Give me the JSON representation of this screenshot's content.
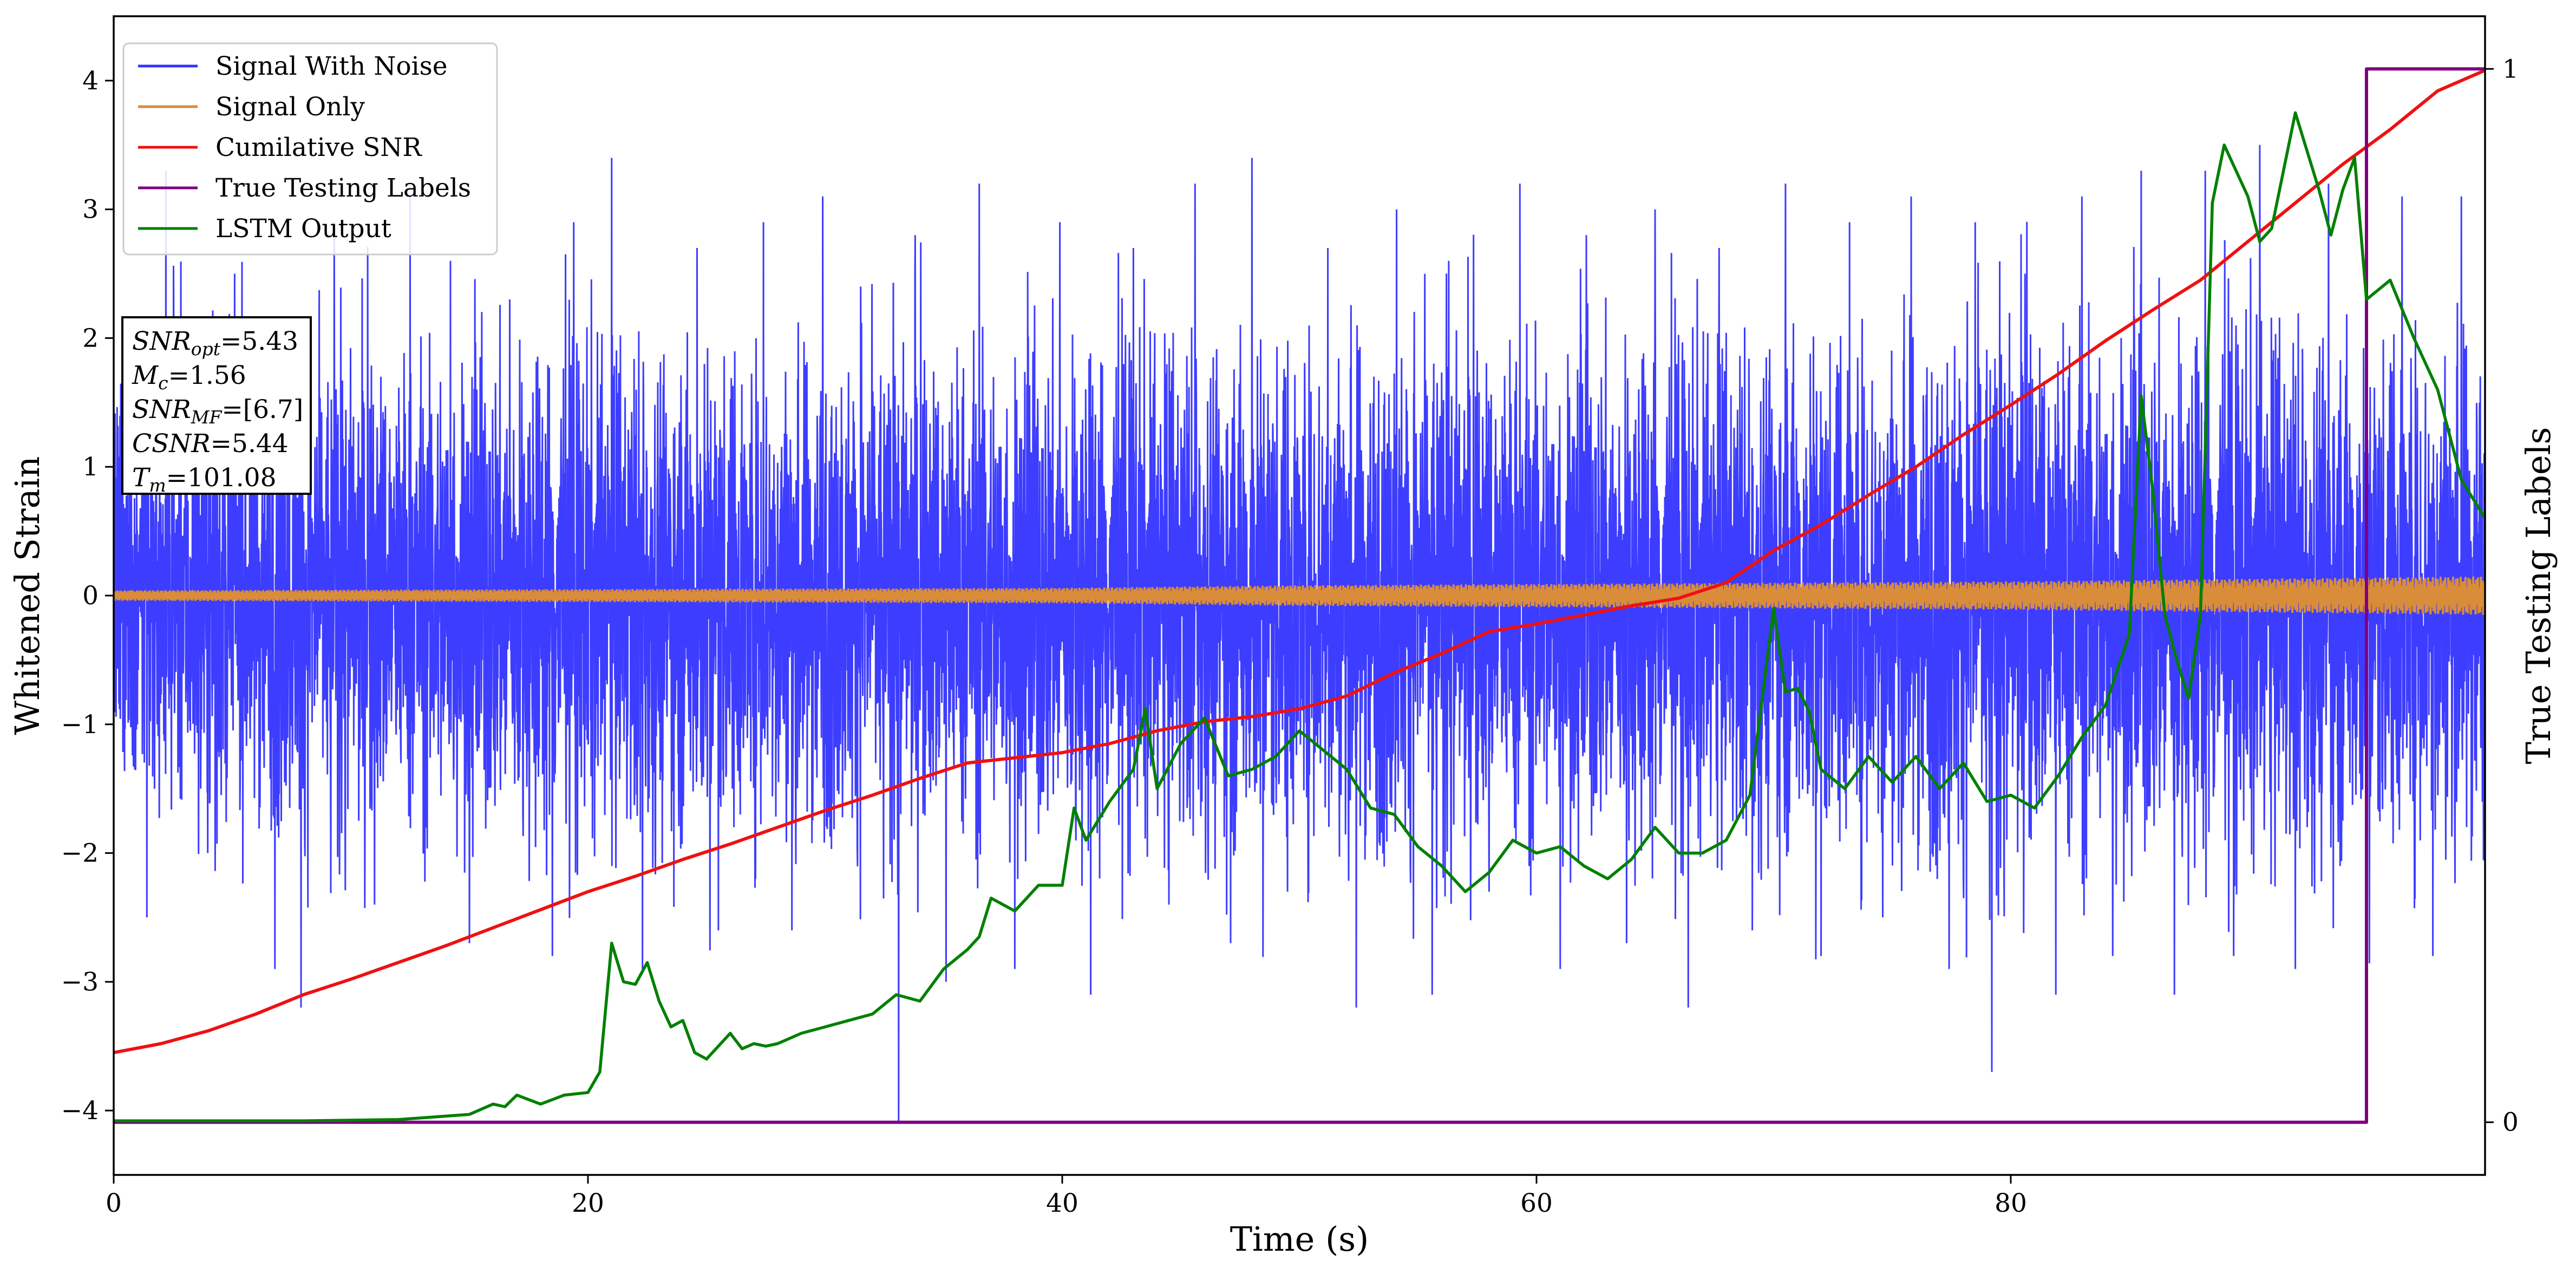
{
  "chart_data": {
    "type": "line",
    "title": "",
    "xlabel": "Time (s)",
    "ylabel": "Whitened Strain",
    "y2label": "True Testing Labels",
    "xlim": [
      0,
      100
    ],
    "ylim": [
      -4.5,
      4.5
    ],
    "y2lim": [
      -0.05,
      1.05
    ],
    "xticks": [
      0,
      20,
      40,
      60,
      80
    ],
    "yticks": [
      -4,
      -3,
      -2,
      -1,
      0,
      1,
      2,
      3,
      4
    ],
    "y2ticks": [
      0,
      1
    ],
    "grid": false,
    "legend_position": "top-left",
    "colors": {
      "signal_with_noise": "#3333ff",
      "signal_only": "#d98c3a",
      "cumulative_snr": "#ee1111",
      "true_labels": "#800080",
      "lstm_output": "#008000"
    },
    "series": [
      {
        "name": "Signal With Noise",
        "axis": "left",
        "description_of_shape": "dense noise",
        "envelope_upper": [
          [
            0,
            1.2
          ],
          [
            10,
            1.4
          ],
          [
            20,
            1.5
          ],
          [
            30,
            1.4
          ],
          [
            40,
            1.5
          ],
          [
            50,
            1.5
          ],
          [
            60,
            1.5
          ],
          [
            70,
            1.5
          ],
          [
            80,
            1.6
          ],
          [
            90,
            1.6
          ],
          [
            100,
            1.5
          ]
        ],
        "envelope_lower": [
          [
            0,
            -1.2
          ],
          [
            10,
            -1.4
          ],
          [
            20,
            -1.5
          ],
          [
            30,
            -1.4
          ],
          [
            40,
            -1.5
          ],
          [
            50,
            -1.5
          ],
          [
            60,
            -1.5
          ],
          [
            70,
            -1.5
          ],
          [
            80,
            -1.6
          ],
          [
            90,
            -1.6
          ],
          [
            100,
            -1.5
          ]
        ],
        "spikes": [
          [
            1.4,
            -2.5
          ],
          [
            2.2,
            3.3
          ],
          [
            3.5,
            2.1
          ],
          [
            5.1,
            2.5
          ],
          [
            6.8,
            -2.9
          ],
          [
            7.9,
            -3.2
          ],
          [
            9.3,
            2.9
          ],
          [
            11.0,
            -2.4
          ],
          [
            12.5,
            3.1
          ],
          [
            14.2,
            2.6
          ],
          [
            15.0,
            -2.7
          ],
          [
            16.7,
            2.3
          ],
          [
            18.5,
            -2.8
          ],
          [
            19.4,
            2.9
          ],
          [
            21.0,
            3.4
          ],
          [
            22.3,
            -2.9
          ],
          [
            24.6,
            2.7
          ],
          [
            25.5,
            -2.6
          ],
          [
            27.4,
            2.9
          ],
          [
            28.6,
            -2.6
          ],
          [
            29.9,
            3.1
          ],
          [
            31.5,
            2.4
          ],
          [
            33.1,
            -4.1
          ],
          [
            33.8,
            2.8
          ],
          [
            35.1,
            -3.0
          ],
          [
            36.5,
            3.2
          ],
          [
            38.0,
            -2.9
          ],
          [
            39.9,
            2.9
          ],
          [
            41.2,
            -3.1
          ],
          [
            43.0,
            2.7
          ],
          [
            44.5,
            -2.4
          ],
          [
            45.6,
            3.2
          ],
          [
            47.1,
            -2.7
          ],
          [
            48.0,
            3.4
          ],
          [
            49.5,
            -2.3
          ],
          [
            51.2,
            2.7
          ],
          [
            52.4,
            -3.2
          ],
          [
            54.1,
            3.0
          ],
          [
            55.6,
            -3.1
          ],
          [
            56.3,
            2.6
          ],
          [
            58.0,
            -2.3
          ],
          [
            59.3,
            3.2
          ],
          [
            61.0,
            -2.9
          ],
          [
            62.1,
            2.8
          ],
          [
            63.8,
            -2.7
          ],
          [
            65.0,
            3.0
          ],
          [
            66.4,
            -3.2
          ],
          [
            67.7,
            2.7
          ],
          [
            69.1,
            -2.6
          ],
          [
            70.5,
            3.2
          ],
          [
            72.0,
            -2.8
          ],
          [
            73.2,
            2.9
          ],
          [
            74.6,
            -2.5
          ],
          [
            75.8,
            3.1
          ],
          [
            77.4,
            -2.9
          ],
          [
            78.5,
            2.9
          ],
          [
            79.2,
            -3.7
          ],
          [
            80.6,
            2.5
          ],
          [
            81.9,
            -3.1
          ],
          [
            83.0,
            3.1
          ],
          [
            84.3,
            -2.8
          ],
          [
            85.5,
            3.3
          ],
          [
            86.9,
            -3.1
          ],
          [
            88.2,
            3.3
          ],
          [
            89.4,
            -2.8
          ],
          [
            90.5,
            3.5
          ],
          [
            92.0,
            -2.9
          ],
          [
            93.4,
            3.2
          ],
          [
            95.0,
            -2.6
          ],
          [
            96.5,
            3.1
          ],
          [
            97.8,
            -2.8
          ],
          [
            99.0,
            3.1
          ]
        ]
      },
      {
        "name": "Signal Only",
        "axis": "left",
        "envelope_amplitude": [
          [
            0,
            0.04
          ],
          [
            20,
            0.05
          ],
          [
            40,
            0.06
          ],
          [
            50,
            0.08
          ],
          [
            60,
            0.09
          ],
          [
            70,
            0.1
          ],
          [
            80,
            0.11
          ],
          [
            90,
            0.13
          ],
          [
            95,
            0.14
          ],
          [
            100,
            0.15
          ]
        ]
      },
      {
        "name": "Cumilative SNR",
        "axis": "left",
        "x": [
          0,
          2,
          4,
          6,
          8,
          10,
          12,
          14,
          16,
          18,
          20,
          22,
          24,
          26,
          28,
          30,
          32,
          34,
          36,
          38,
          40,
          42,
          44,
          46,
          48,
          50,
          52,
          54,
          56,
          58,
          60,
          62,
          64,
          66,
          68,
          70,
          72,
          74,
          76,
          78,
          80,
          82,
          84,
          86,
          88,
          90,
          92,
          94,
          96,
          98,
          100
        ],
        "y": [
          -3.55,
          -3.48,
          -3.38,
          -3.25,
          -3.1,
          -2.98,
          -2.85,
          -2.72,
          -2.58,
          -2.44,
          -2.3,
          -2.18,
          -2.05,
          -1.93,
          -1.8,
          -1.67,
          -1.55,
          -1.42,
          -1.3,
          -1.26,
          -1.22,
          -1.15,
          -1.05,
          -0.98,
          -0.94,
          -0.88,
          -0.78,
          -0.6,
          -0.45,
          -0.28,
          -0.22,
          -0.15,
          -0.08,
          -0.02,
          0.1,
          0.35,
          0.55,
          0.78,
          1.0,
          1.25,
          1.48,
          1.72,
          1.98,
          2.22,
          2.45,
          2.75,
          3.05,
          3.35,
          3.62,
          3.92,
          4.08
        ]
      },
      {
        "name": "True Testing Labels",
        "axis": "right",
        "x": [
          0,
          94.6,
          94.6,
          95.0,
          95.0,
          100
        ],
        "y": [
          0,
          0,
          0.0,
          0.0,
          1,
          1
        ]
      },
      {
        "name": "LSTM Output",
        "axis": "left",
        "x": [
          0,
          4,
          8,
          12,
          13.5,
          15,
          16,
          16.5,
          17,
          18,
          19,
          20,
          20.5,
          21,
          21.5,
          22,
          22.5,
          23,
          23.5,
          24,
          24.5,
          25,
          25.5,
          26,
          26.5,
          27,
          27.5,
          28,
          29,
          30,
          31,
          32,
          33,
          34,
          35,
          36,
          36.5,
          37,
          38,
          39,
          40,
          40.5,
          41,
          42,
          43,
          43.5,
          44,
          45,
          46,
          47,
          48,
          49,
          50,
          51,
          52,
          53,
          54,
          55,
          56,
          57,
          58,
          59,
          60,
          61,
          62,
          63,
          64,
          65,
          66,
          67,
          68,
          69,
          70,
          70.5,
          71,
          71.5,
          72,
          73,
          74,
          75,
          76,
          77,
          78,
          79,
          80,
          81,
          82,
          83,
          84,
          85,
          85.5,
          86,
          86.5,
          87,
          87.5,
          88,
          88.5,
          89,
          90,
          90.5,
          91,
          92,
          93,
          93.5,
          94,
          94.5,
          95,
          96,
          97,
          98,
          99,
          100
        ],
        "y": [
          -4.08,
          -4.08,
          -4.08,
          -4.07,
          -4.05,
          -4.03,
          -3.95,
          -3.97,
          -3.88,
          -3.95,
          -3.88,
          -3.86,
          -3.7,
          -2.7,
          -3.0,
          -3.02,
          -2.85,
          -3.15,
          -3.35,
          -3.3,
          -3.55,
          -3.6,
          -3.5,
          -3.4,
          -3.52,
          -3.48,
          -3.5,
          -3.48,
          -3.4,
          -3.35,
          -3.3,
          -3.25,
          -3.1,
          -3.15,
          -2.9,
          -2.75,
          -2.65,
          -2.35,
          -2.45,
          -2.25,
          -2.25,
          -1.65,
          -1.9,
          -1.6,
          -1.35,
          -0.88,
          -1.5,
          -1.15,
          -0.95,
          -1.4,
          -1.35,
          -1.25,
          -1.05,
          -1.2,
          -1.35,
          -1.65,
          -1.7,
          -1.95,
          -2.1,
          -2.3,
          -2.15,
          -1.9,
          -2.0,
          -1.95,
          -2.1,
          -2.2,
          -2.05,
          -1.8,
          -2.0,
          -2.0,
          -1.9,
          -1.55,
          -0.1,
          -0.75,
          -0.72,
          -0.9,
          -1.35,
          -1.5,
          -1.25,
          -1.45,
          -1.25,
          -1.5,
          -1.3,
          -1.6,
          -1.55,
          -1.65,
          -1.4,
          -1.1,
          -0.85,
          -0.3,
          1.55,
          0.8,
          -0.15,
          -0.5,
          -0.8,
          -0.15,
          3.05,
          3.5,
          3.1,
          2.75,
          2.85,
          3.75,
          3.15,
          2.8,
          3.15,
          3.4,
          2.3,
          2.45,
          2.0,
          1.6,
          0.9,
          0.6
        ]
      }
    ],
    "annotations": {
      "info_box": [
        {
          "sym": "SNR",
          "sub": "opt",
          "value": "=5.43"
        },
        {
          "sym": "M",
          "sub": "c",
          "value": "=1.56"
        },
        {
          "sym": "SNR",
          "sub": "MF",
          "value": "=[6.7]"
        },
        {
          "sym": "CSNR",
          "sub": "",
          "value": "=5.44"
        },
        {
          "sym": "T",
          "sub": "m",
          "value": "=101.08"
        }
      ]
    }
  }
}
